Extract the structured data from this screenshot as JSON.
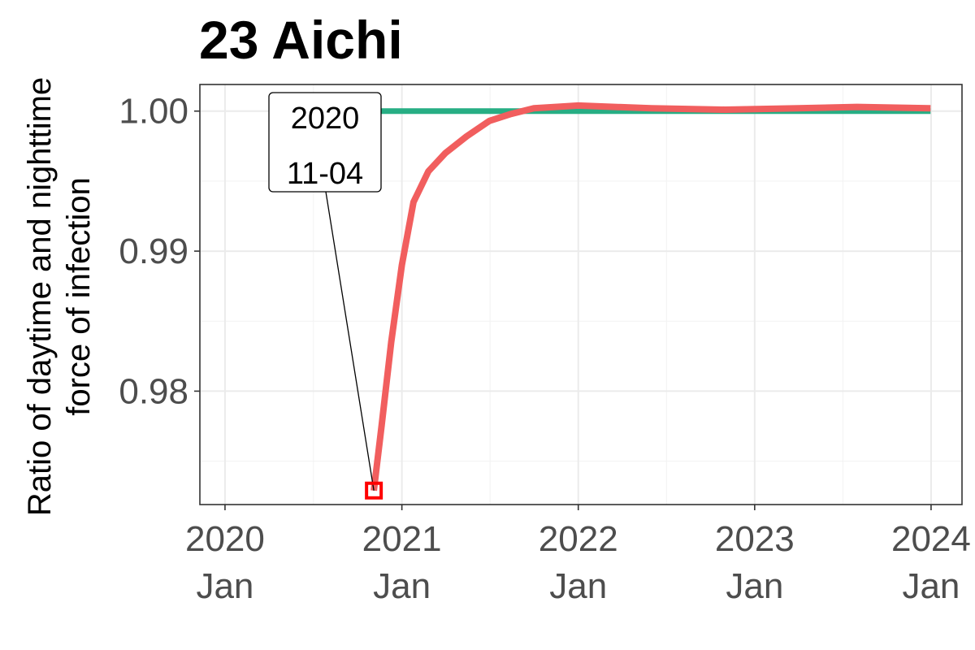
{
  "chart_data": {
    "type": "line",
    "title": "23 Aichi",
    "ylabel_lines": [
      "Ratio of daytime and nighttime",
      "force of infection"
    ],
    "xlabel": "",
    "x_ticks": [
      {
        "date": "2020-01-01",
        "line1": "2020",
        "line2": "Jan"
      },
      {
        "date": "2021-01-01",
        "line1": "2021",
        "line2": "Jan"
      },
      {
        "date": "2022-01-01",
        "line1": "2022",
        "line2": "Jan"
      },
      {
        "date": "2023-01-01",
        "line1": "2023",
        "line2": "Jan"
      },
      {
        "date": "2024-01-01",
        "line1": "2024",
        "line2": "Jan"
      }
    ],
    "xlim": [
      "2019-11-10",
      "2024-03-05"
    ],
    "y_ticks": [
      0.98,
      0.99,
      1.0
    ],
    "y_tick_labels": [
      "0.98",
      "0.99",
      "1.00"
    ],
    "ylim": [
      0.9719,
      1.0019
    ],
    "grid": true,
    "series": [
      {
        "color": "#27AE84",
        "x": [
          "2020-11-04",
          "2023-12-31"
        ],
        "y": [
          1.0,
          1.0
        ]
      },
      {
        "color": "#F15E5E",
        "x": [
          "2020-11-04",
          "2020-11-20",
          "2020-12-10",
          "2021-01-01",
          "2021-01-25",
          "2021-02-25",
          "2021-04-01",
          "2021-05-15",
          "2021-07-01",
          "2021-08-15",
          "2021-10-01",
          "2022-01-01",
          "2022-06-01",
          "2022-11-01",
          "2023-04-01",
          "2023-08-01",
          "2023-12-31"
        ],
        "y": [
          0.9729,
          0.9775,
          0.9835,
          0.989,
          0.9935,
          0.9957,
          0.997,
          0.9982,
          0.9993,
          0.9998,
          1.0002,
          1.0004,
          1.0002,
          1.0001,
          1.0002,
          1.0003,
          1.0002
        ]
      }
    ],
    "annotation": {
      "date": "2020-11-04",
      "value": 0.9729,
      "label_line1": "2020",
      "label_line2": "11-04",
      "marker_color": "#FF0000"
    }
  }
}
